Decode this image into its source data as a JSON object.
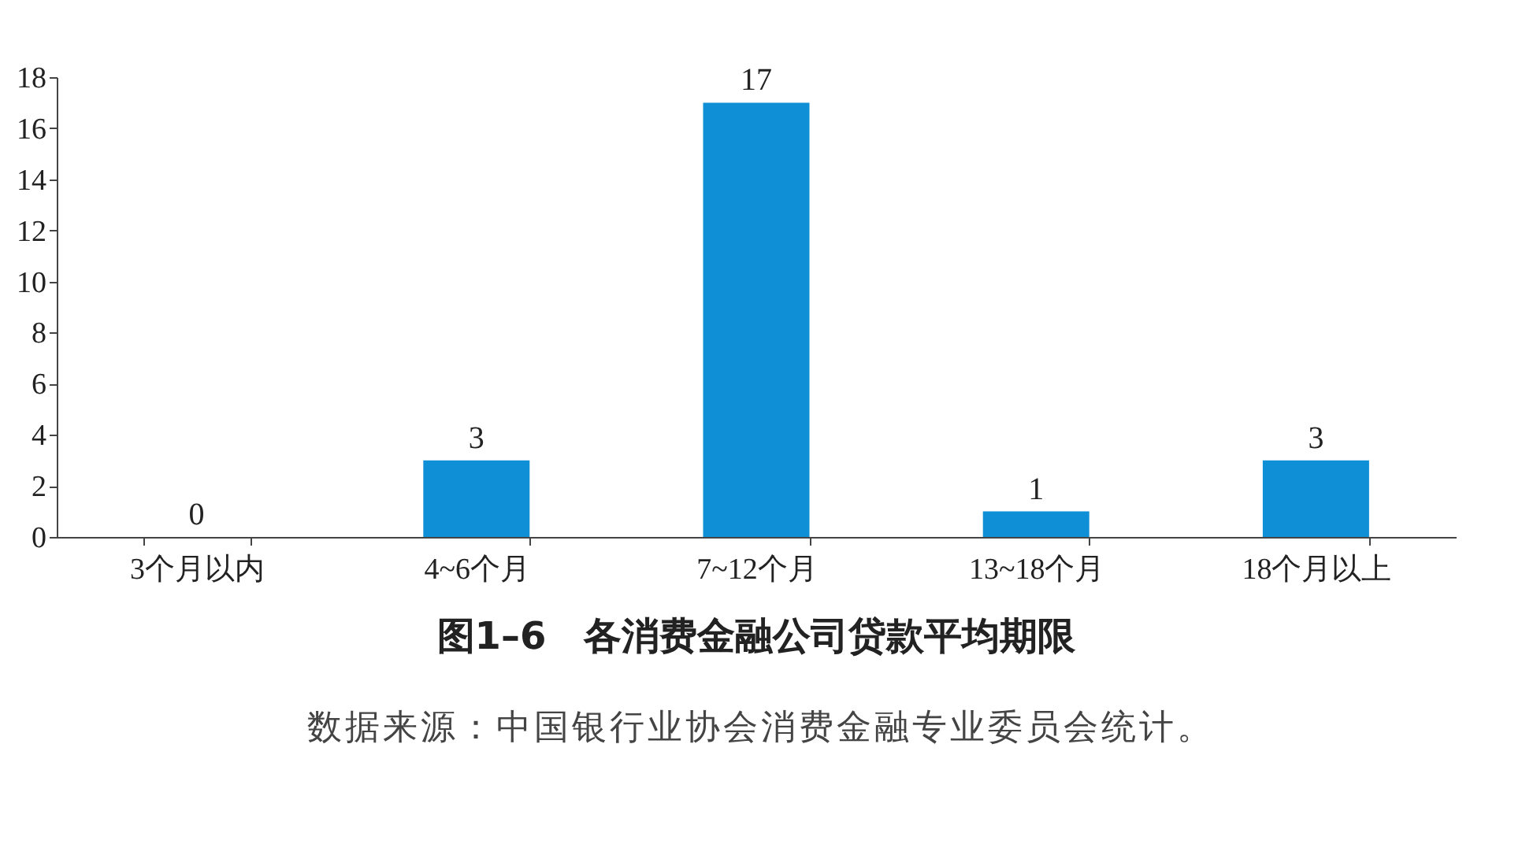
{
  "chart_data": {
    "type": "bar",
    "title": "图1–6　各消费金融公司贷款平均期限",
    "categories": [
      "3个月以内",
      "4~6个月",
      "7~12个月",
      "13~18个月",
      "18个月以上"
    ],
    "values": [
      0,
      3,
      17,
      1,
      3
    ],
    "color": "#0f8fd6",
    "ylim": [
      0,
      18
    ],
    "yticks": [
      0,
      2,
      4,
      6,
      8,
      10,
      12,
      14,
      16,
      18
    ],
    "grid": false,
    "data_labels": true,
    "annotations": [
      "数据来源：中国银行业协会消费金融专业委员会统计。"
    ]
  }
}
